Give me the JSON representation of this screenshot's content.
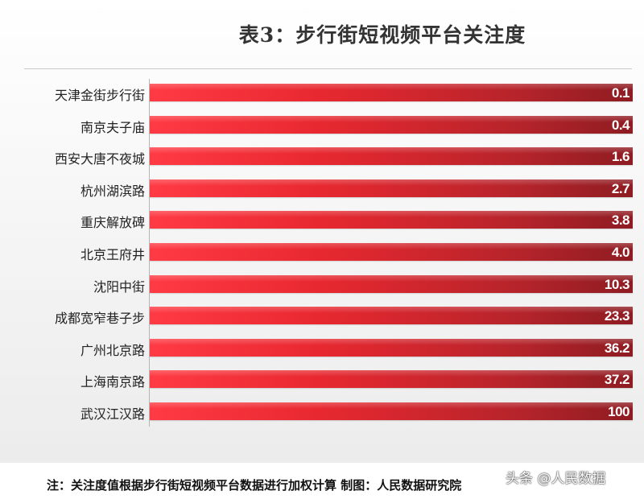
{
  "chart_data": {
    "type": "bar",
    "orientation": "horizontal",
    "title": "表3：步行街短视频平台关注度",
    "categories": [
      "天津金街步行街",
      "南京夫子庙",
      "西安大唐不夜城",
      "杭州湖滨路",
      "重庆解放碑",
      "北京王府井",
      "沈阳中街",
      "成都宽窄巷子步",
      "广州北京路",
      "上海南京路",
      "武汉江汉路"
    ],
    "value_labels": [
      "0.1",
      "0.4",
      "1.6",
      "2.7",
      "3.8",
      "4.0",
      "10.3",
      "23.3",
      "36.2",
      "37.2",
      "100"
    ],
    "values": [
      0.1,
      0.4,
      1.6,
      2.7,
      3.8,
      4.0,
      10.3,
      23.3,
      36.2,
      37.2,
      100
    ],
    "bar_colors": [
      "#ff3a44",
      "#8e1c22"
    ],
    "grid": false
  },
  "footnote": "注：关注度值根据步行街短视频平台数据进行加权计算  制图：人民数据研究院",
  "watermark": "头条 @人民数据"
}
